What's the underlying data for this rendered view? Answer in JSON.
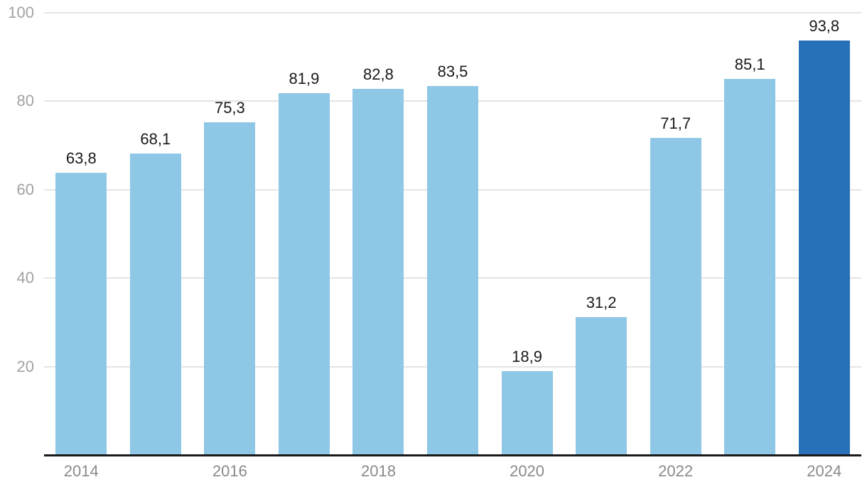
{
  "chart_data": {
    "type": "bar",
    "title": "",
    "xlabel": "",
    "ylabel": "",
    "categories": [
      "2014",
      "2015",
      "2016",
      "2017",
      "2018",
      "2019",
      "2020",
      "2021",
      "2022",
      "2023",
      "2024"
    ],
    "values": [
      63.8,
      68.1,
      75.3,
      81.9,
      82.8,
      83.5,
      18.9,
      31.2,
      71.7,
      85.1,
      93.8
    ],
    "value_labels": [
      "63,8",
      "68,1",
      "75,3",
      "81,9",
      "82,8",
      "83,5",
      "18,9",
      "31,2",
      "71,7",
      "85,1",
      "93,8"
    ],
    "x_tick_labels": [
      "2014",
      "2016",
      "2018",
      "2020",
      "2022",
      "2024"
    ],
    "x_tick_every": 2,
    "y_ticks": [
      20,
      40,
      60,
      80,
      100
    ],
    "ylim": [
      0,
      100
    ],
    "grid": true,
    "legend_position": "none",
    "highlight_index": 10,
    "colors": {
      "bar": "#8ec8e6",
      "bar_highlight": "#2871b8",
      "gridline": "#e4e4e4",
      "axis_line": "#1a1a1a",
      "y_tick_text": "#a2a2a2",
      "x_tick_text": "#8a8a8a",
      "value_label_text": "#1a1a1a",
      "background": "#ffffff"
    }
  }
}
